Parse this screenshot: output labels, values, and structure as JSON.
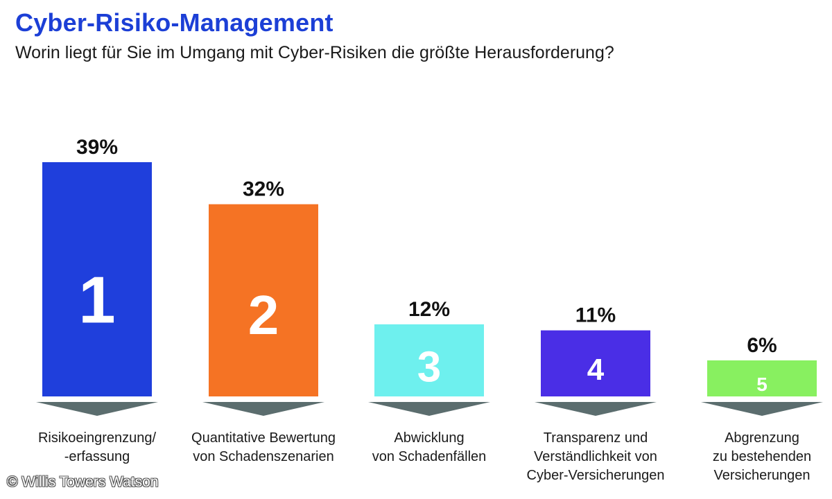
{
  "title": "Cyber-Risiko-Management",
  "subtitle": "Worin liegt für Sie im Umgang mit Cyber-Risiken die größte Herausforderung?",
  "credit": "© Willis Towers Watson",
  "chart_data": {
    "type": "bar",
    "categories": [
      [
        "Risikoeingrenzung/",
        "-erfassung"
      ],
      [
        "Quantitative Bewertung",
        "von Schadenszenarien"
      ],
      [
        "Abwicklung",
        "von Schadenfällen"
      ],
      [
        "Transparenz und",
        "Verständlichkeit von",
        "Cyber-Versicherungen"
      ],
      [
        "Abgrenzung",
        "zu bestehenden",
        "Versicherungen"
      ]
    ],
    "values": [
      39,
      32,
      12,
      11,
      6
    ],
    "value_labels": [
      "39%",
      "32%",
      "12%",
      "11%",
      "6%"
    ],
    "ranks": [
      "1",
      "2",
      "3",
      "4",
      "5"
    ],
    "colors": [
      "#1f3fdc",
      "#f57324",
      "#6ef0ee",
      "#4a2ee6",
      "#88f060"
    ],
    "arrow_color": "#5b6d6e",
    "ylim": [
      0,
      39
    ],
    "grid": false,
    "legend": "none"
  }
}
